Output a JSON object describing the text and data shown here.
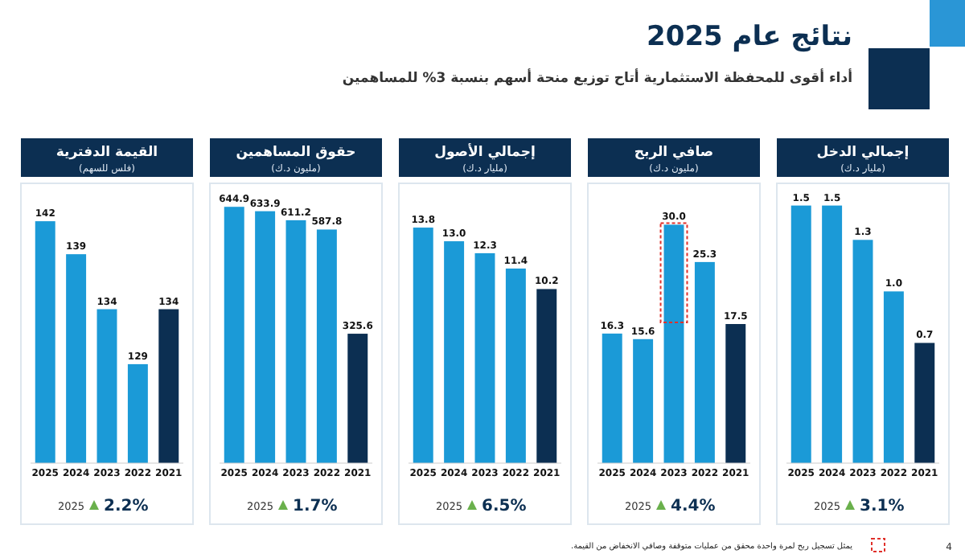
{
  "chart_data": [
    {
      "type": "other",
      "title": "نتائج عام 2025",
      "subtitle": "أداء أقوى للمحفظة الاستثمارية أتاح توزيع منحة أسهم بنسبة 3% للمساهمين",
      "annotations": [
        "4"
      ]
    },
    {
      "type": "bar",
      "title": "إجمالي الدخل",
      "subtitle": "(مليار د.ك)",
      "categories": [
        "2025",
        "2024",
        "2023",
        "2022",
        "2021"
      ],
      "values": [
        1.5,
        1.5,
        1.3,
        1.0,
        0.7
      ],
      "colors": [
        "#1b9ad7",
        "#1b9ad7",
        "#1b9ad7",
        "#1b9ad7",
        "#0c2f52"
      ],
      "ylim": [
        0,
        1.62
      ],
      "data_labels": true,
      "value_labels": [
        "1.5",
        "1.5",
        "1.3",
        "1.0",
        "0.7"
      ],
      "annotations": [
        "2025",
        "3.1%"
      ]
    },
    {
      "type": "bar",
      "title": "صافي الربح",
      "subtitle": "(مليون د.ك)",
      "categories": [
        "2025",
        "2024",
        "2023",
        "2022",
        "2021"
      ],
      "values": [
        16.3,
        15.6,
        30.0,
        25.3,
        17.5
      ],
      "colors": [
        "#1b9ad7",
        "#1b9ad7",
        "#1b9ad7",
        "#1b9ad7",
        "#0c2f52"
      ],
      "ylim": [
        0,
        35
      ],
      "data_labels": true,
      "value_labels": [
        "16.3",
        "15.6",
        "30.0",
        "25.3",
        "17.5"
      ],
      "annotations": [
        "2025",
        "4.4%",
        "يمثل تسجيل ربح لمرة واحدة محقق من عمليات متوقفة وصافي الانخفاض من القيمة."
      ]
    },
    {
      "type": "bar",
      "title": "إجمالي الأصول",
      "subtitle": "(مليار د.ك)",
      "categories": [
        "2025",
        "2024",
        "2023",
        "2022",
        "2021"
      ],
      "values": [
        13.8,
        13.0,
        12.3,
        11.4,
        10.2
      ],
      "colors": [
        "#1b9ad7",
        "#1b9ad7",
        "#1b9ad7",
        "#1b9ad7",
        "#0c2f52"
      ],
      "ylim": [
        0,
        16.3
      ],
      "data_labels": true,
      "value_labels": [
        "13.8",
        "13.0",
        "12.3",
        "11.4",
        "10.2"
      ],
      "annotations": [
        "2025",
        "6.5%"
      ]
    },
    {
      "type": "bar",
      "title": "حقوق المساهمين",
      "subtitle": "(مليون د.ك)",
      "categories": [
        "2025",
        "2024",
        "2023",
        "2022",
        "2021"
      ],
      "values": [
        644.9,
        633.9,
        611.2,
        587.8,
        325.6
      ],
      "colors": [
        "#1b9ad7",
        "#1b9ad7",
        "#1b9ad7",
        "#1b9ad7",
        "#0c2f52"
      ],
      "ylim": [
        0,
        700
      ],
      "data_labels": true,
      "value_labels": [
        "644.9",
        "633.9",
        "611.2",
        "587.8",
        "325.6"
      ],
      "annotations": [
        "2025",
        "1.7%"
      ]
    },
    {
      "type": "bar",
      "title": "القيمة الدفترية",
      "subtitle": "(فلس للسهم)",
      "categories": [
        "2025",
        "2024",
        "2023",
        "2022",
        "2021"
      ],
      "values": [
        142,
        139,
        134,
        129,
        134
      ],
      "colors": [
        "#1b9ad7",
        "#1b9ad7",
        "#1b9ad7",
        "#1b9ad7",
        "#0c2f52"
      ],
      "ylim": [
        120,
        145.3
      ],
      "data_labels": true,
      "annotations": [
        "2025",
        "2.2%"
      ]
    }
  ]
}
